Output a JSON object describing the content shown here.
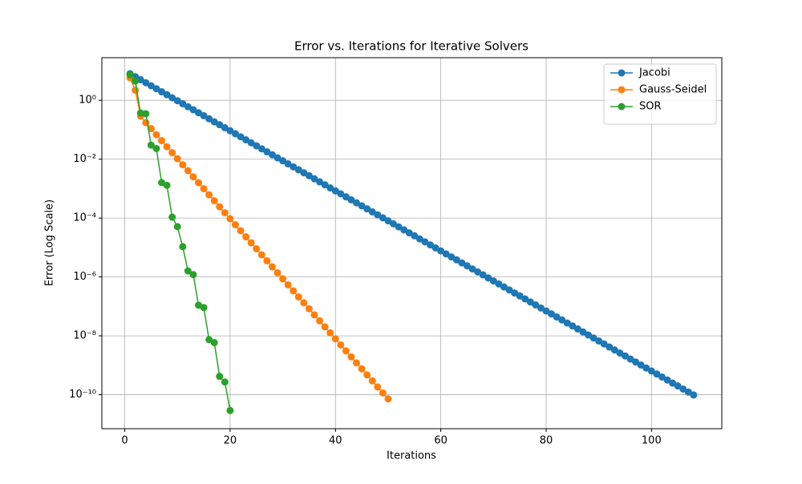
{
  "chart_data": {
    "type": "line",
    "title": "Error vs. Iterations for Iterative Solvers",
    "x_label": "Iterations",
    "y_label": "Error (Log Scale)",
    "yscale": "log",
    "grid": true,
    "legend_loc": "upper right",
    "xlim": [
      -4.35,
      113.35
    ],
    "ylim": [
      7e-12,
      28
    ],
    "xticks": [
      0,
      20,
      40,
      60,
      80,
      100
    ],
    "yticks": [
      {
        "value": 1,
        "label": "10⁰"
      },
      {
        "value": 0.01,
        "label": "10⁻²"
      },
      {
        "value": 0.0001,
        "label": "10⁻⁴"
      },
      {
        "value": 1e-06,
        "label": "10⁻⁶"
      },
      {
        "value": 1e-08,
        "label": "10⁻⁸"
      },
      {
        "value": 1e-10,
        "label": "10⁻¹⁰"
      }
    ],
    "series": [
      {
        "name": "Jacobi",
        "color": "#1f77b4",
        "x": [
          1,
          2,
          3,
          4,
          5,
          6,
          7,
          8,
          9,
          10,
          11,
          12,
          13,
          14,
          15,
          16,
          17,
          18,
          19,
          20,
          21,
          22,
          23,
          24,
          25,
          26,
          27,
          28,
          29,
          30,
          31,
          32,
          33,
          34,
          35,
          36,
          37,
          38,
          39,
          40,
          41,
          42,
          43,
          44,
          45,
          46,
          47,
          48,
          49,
          50,
          51,
          52,
          53,
          54,
          55,
          56,
          57,
          58,
          59,
          60,
          61,
          62,
          63,
          64,
          65,
          66,
          67,
          68,
          69,
          70,
          71,
          72,
          73,
          74,
          75,
          76,
          77,
          78,
          79,
          80,
          81,
          82,
          83,
          84,
          85,
          86,
          87,
          88,
          89,
          90,
          91,
          92,
          93,
          94,
          95,
          96,
          97,
          98,
          99,
          100,
          101,
          102,
          103,
          104,
          105,
          106,
          107,
          108
        ],
        "values": [
          8.0,
          6.32,
          5.0,
          3.95,
          3.13,
          2.47,
          1.95,
          1.55,
          1.22,
          0.966,
          0.764,
          0.604,
          0.478,
          0.377,
          0.299,
          0.236,
          0.186,
          0.148,
          0.117,
          0.0923,
          0.073,
          0.0576,
          0.0456,
          0.036,
          0.0285,
          0.0225,
          0.0178,
          0.0141,
          0.0111,
          0.00881,
          0.00697,
          0.0055,
          0.00436,
          0.00344,
          0.00273,
          0.00215,
          0.0017,
          0.00135,
          0.00106,
          0.000841,
          0.000666,
          0.000526,
          0.000416,
          0.000329,
          0.00026,
          0.000206,
          0.000162,
          0.000129,
          0.000102,
          8.04e-05,
          6.35e-05,
          5.02e-05,
          3.97e-05,
          3.14e-05,
          2.49e-05,
          1.96e-05,
          1.55e-05,
          1.23e-05,
          9.69e-06,
          7.67e-06,
          6.07e-06,
          4.8e-06,
          3.8e-06,
          3e-06,
          2.38e-06,
          1.87e-06,
          1.48e-06,
          1.18e-06,
          9.26e-07,
          7.33e-07,
          5.79e-07,
          4.58e-07,
          3.62e-07,
          2.86e-07,
          2.27e-07,
          1.79e-07,
          1.41e-07,
          1.12e-07,
          8.83e-08,
          6.99e-08,
          5.54e-08,
          4.37e-08,
          3.46e-08,
          2.73e-08,
          2.17e-08,
          1.71e-08,
          1.35e-08,
          1.07e-08,
          8.44e-09,
          6.68e-09,
          5.29e-09,
          4.18e-09,
          3.31e-09,
          2.61e-09,
          2.07e-09,
          1.63e-09,
          1.29e-09,
          1.02e-09,
          8.06e-10,
          6.39e-10,
          5.05e-10,
          3.99e-10,
          3.16e-10,
          2.49e-10,
          1.98e-10,
          1.56e-10,
          1.23e-10,
          9.78e-11
        ]
      },
      {
        "name": "Gauss-Seidel",
        "color": "#ff7f0e",
        "x": [
          1,
          2,
          3,
          4,
          5,
          6,
          7,
          8,
          9,
          10,
          11,
          12,
          13,
          14,
          15,
          16,
          17,
          18,
          19,
          20,
          21,
          22,
          23,
          24,
          25,
          26,
          27,
          28,
          29,
          30,
          31,
          32,
          33,
          34,
          35,
          36,
          37,
          38,
          39,
          40,
          41,
          42,
          43,
          44,
          45,
          46,
          47,
          48,
          49,
          50
        ],
        "values": [
          5.8,
          2.2,
          0.29,
          0.174,
          0.109,
          0.0679,
          0.0425,
          0.0265,
          0.0166,
          0.0104,
          0.00648,
          0.00406,
          0.00253,
          0.00159,
          0.000994,
          0.000619,
          0.000388,
          0.000242,
          0.000152,
          9.49e-05,
          5.91e-05,
          3.7e-05,
          2.31e-05,
          1.45e-05,
          9.07e-06,
          5.65e-06,
          3.54e-06,
          2.2e-06,
          1.38e-06,
          8.65e-07,
          5.39e-07,
          3.37e-07,
          2.1e-07,
          1.32e-07,
          8.27e-08,
          5.15e-08,
          3.23e-08,
          2.01e-08,
          1.26e-08,
          7.89e-09,
          4.92e-09,
          3.08e-09,
          1.92e-09,
          1.2e-09,
          7.54e-10,
          4.7e-10,
          2.94e-10,
          1.83e-10,
          1.15e-10,
          7.2e-11
        ]
      },
      {
        "name": "SOR",
        "color": "#2ca02c",
        "x": [
          1,
          2,
          3,
          4,
          5,
          6,
          7,
          8,
          9,
          10,
          11,
          12,
          13,
          14,
          15,
          16,
          17,
          18,
          19,
          20
        ],
        "values": [
          7.4,
          4.5,
          0.37,
          0.35,
          0.03,
          0.023,
          0.0016,
          0.0013,
          0.000107,
          5.1e-05,
          1.07e-05,
          1.6e-06,
          1.2e-06,
          1.1e-07,
          9.1e-08,
          7.4e-09,
          5.9e-09,
          4.2e-10,
          2.7e-10,
          2.9e-11
        ]
      }
    ]
  }
}
